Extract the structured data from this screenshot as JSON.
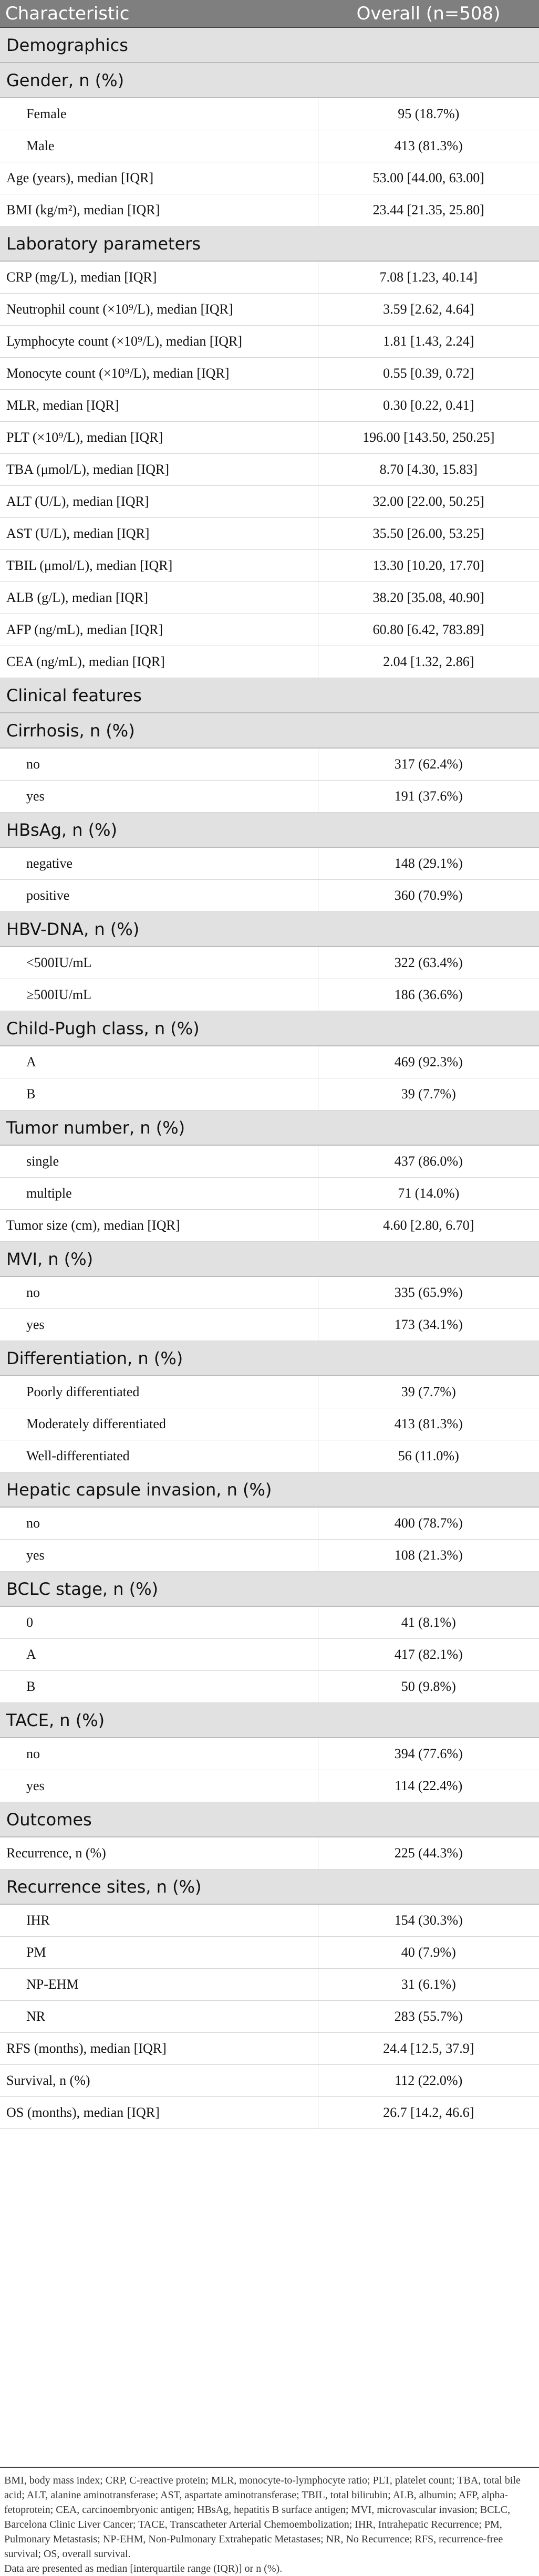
{
  "table": {
    "header": {
      "col1": "Characteristic",
      "col2": "Overall (n=508)"
    },
    "rows": [
      {
        "type": "sec",
        "label": "Demographics"
      },
      {
        "type": "sec",
        "label": "Gender, n (%)"
      },
      {
        "type": "row",
        "label": "Female",
        "value": "95 (18.7%)",
        "indent": true
      },
      {
        "type": "row",
        "label": "Male",
        "value": "413 (81.3%)",
        "indent": true
      },
      {
        "type": "row",
        "label": "Age (years), median [IQR]",
        "value": "53.00 [44.00, 63.00]"
      },
      {
        "type": "row",
        "label": "BMI (kg/m²), median [IQR]",
        "value": "23.44 [21.35, 25.80]"
      },
      {
        "type": "sec",
        "label": "Laboratory parameters"
      },
      {
        "type": "row",
        "label": "CRP (mg/L), median [IQR]",
        "value": "7.08 [1.23, 40.14]"
      },
      {
        "type": "row",
        "label": "Neutrophil count (×10⁹/L), median [IQR]",
        "value": "3.59 [2.62, 4.64]"
      },
      {
        "type": "row",
        "label": "Lymphocyte count (×10⁹/L), median [IQR]",
        "value": "1.81 [1.43, 2.24]"
      },
      {
        "type": "row",
        "label": "Monocyte count (×10⁹/L), median [IQR]",
        "value": "0.55 [0.39, 0.72]"
      },
      {
        "type": "row",
        "label": "MLR, median [IQR]",
        "value": "0.30 [0.22, 0.41]"
      },
      {
        "type": "row",
        "label": "PLT (×10⁹/L), median [IQR]",
        "value": "196.00 [143.50, 250.25]"
      },
      {
        "type": "row",
        "label": "TBA (μmol/L), median [IQR]",
        "value": "8.70 [4.30, 15.83]"
      },
      {
        "type": "row",
        "label": "ALT (U/L), median [IQR]",
        "value": "32.00 [22.00, 50.25]"
      },
      {
        "type": "row",
        "label": "AST (U/L), median [IQR]",
        "value": "35.50 [26.00, 53.25]"
      },
      {
        "type": "row",
        "label": "TBIL (μmol/L), median [IQR]",
        "value": "13.30 [10.20, 17.70]"
      },
      {
        "type": "row",
        "label": "ALB (g/L), median [IQR]",
        "value": "38.20 [35.08, 40.90]"
      },
      {
        "type": "row",
        "label": "AFP (ng/mL), median [IQR]",
        "value": "60.80 [6.42, 783.89]"
      },
      {
        "type": "row",
        "label": "CEA (ng/mL), median [IQR]",
        "value": "2.04 [1.32, 2.86]"
      },
      {
        "type": "sec",
        "label": "Clinical features"
      },
      {
        "type": "sec",
        "label": "Cirrhosis, n (%)"
      },
      {
        "type": "row",
        "label": "no",
        "value": "317 (62.4%)",
        "indent": true
      },
      {
        "type": "row",
        "label": "yes",
        "value": "191 (37.6%)",
        "indent": true
      },
      {
        "type": "sec",
        "label": "HBsAg, n (%)"
      },
      {
        "type": "row",
        "label": "negative",
        "value": "148 (29.1%)",
        "indent": true
      },
      {
        "type": "row",
        "label": "positive",
        "value": "360 (70.9%)",
        "indent": true
      },
      {
        "type": "sec",
        "label": "HBV-DNA, n (%)"
      },
      {
        "type": "row",
        "label": "<500IU/mL",
        "value": "322 (63.4%)",
        "indent": true
      },
      {
        "type": "row",
        "label": "≥500IU/mL",
        "value": "186 (36.6%)",
        "indent": true
      },
      {
        "type": "sec",
        "label": "Child-Pugh class, n (%)"
      },
      {
        "type": "row",
        "label": "A",
        "value": "469 (92.3%)",
        "indent": true
      },
      {
        "type": "row",
        "label": "B",
        "value": "39 (7.7%)",
        "indent": true
      },
      {
        "type": "sec",
        "label": "Tumor number, n (%)"
      },
      {
        "type": "row",
        "label": "single",
        "value": "437 (86.0%)",
        "indent": true
      },
      {
        "type": "row",
        "label": "multiple",
        "value": "71 (14.0%)",
        "indent": true
      },
      {
        "type": "row",
        "label": "Tumor size (cm), median [IQR]",
        "value": "4.60 [2.80, 6.70]"
      },
      {
        "type": "sec",
        "label": "MVI, n (%)"
      },
      {
        "type": "row",
        "label": "no",
        "value": "335 (65.9%)",
        "indent": true
      },
      {
        "type": "row",
        "label": "yes",
        "value": "173 (34.1%)",
        "indent": true
      },
      {
        "type": "sec",
        "label": "Differentiation, n (%)"
      },
      {
        "type": "row",
        "label": "Poorly differentiated",
        "value": "39 (7.7%)",
        "indent": true
      },
      {
        "type": "row",
        "label": "Moderately differentiated",
        "value": "413 (81.3%)",
        "indent": true
      },
      {
        "type": "row",
        "label": "Well-differentiated",
        "value": "56 (11.0%)",
        "indent": true
      },
      {
        "type": "sec",
        "label": "Hepatic capsule invasion, n (%)"
      },
      {
        "type": "row",
        "label": "no",
        "value": "400 (78.7%)",
        "indent": true
      },
      {
        "type": "row",
        "label": "yes",
        "value": "108 (21.3%)",
        "indent": true
      },
      {
        "type": "sec",
        "label": "BCLC stage, n (%)"
      },
      {
        "type": "row",
        "label": "0",
        "value": "41 (8.1%)",
        "indent": true
      },
      {
        "type": "row",
        "label": "A",
        "value": "417 (82.1%)",
        "indent": true
      },
      {
        "type": "row",
        "label": "B",
        "value": "50 (9.8%)",
        "indent": true
      },
      {
        "type": "sec",
        "label": "TACE, n (%)"
      },
      {
        "type": "row",
        "label": "no",
        "value": "394 (77.6%)",
        "indent": true
      },
      {
        "type": "row",
        "label": "yes",
        "value": "114 (22.4%)",
        "indent": true
      },
      {
        "type": "sec",
        "label": "Outcomes"
      },
      {
        "type": "row",
        "label": "Recurrence, n (%)",
        "value": "225 (44.3%)"
      },
      {
        "type": "sec",
        "label": "Recurrence sites, n (%)"
      },
      {
        "type": "row",
        "label": "IHR",
        "value": "154 (30.3%)",
        "indent": true
      },
      {
        "type": "row",
        "label": "PM",
        "value": "40 (7.9%)",
        "indent": true
      },
      {
        "type": "row",
        "label": "NP-EHM",
        "value": "31 (6.1%)",
        "indent": true
      },
      {
        "type": "row",
        "label": "NR",
        "value": "283 (55.7%)",
        "indent": true
      },
      {
        "type": "row",
        "label": "RFS (months), median [IQR]",
        "value": "24.4 [12.5, 37.9]"
      },
      {
        "type": "row",
        "label": "Survival, n (%)",
        "value": "112 (22.0%)"
      },
      {
        "type": "row",
        "label": "OS (months), median [IQR]",
        "value": "26.7 [14.2, 46.6]"
      }
    ]
  },
  "footnote": {
    "abbreviations": "BMI, body mass index; CRP, C-reactive protein; MLR, monocyte-to-lymphocyte ratio; PLT, platelet count; TBA, total bile acid; ALT, alanine aminotransferase; AST, aspartate aminotransferase; TBIL, total bilirubin; ALB, albumin; AFP, alpha-fetoprotein; CEA, carcinoembryonic antigen; HBsAg, hepatitis B surface antigen; MVI, microvascular invasion; BCLC, Barcelona Clinic Liver Cancer; TACE, Transcatheter Arterial Chemoembolization; IHR, Intrahepatic Recurrence; PM, Pulmonary Metastasis; NP-EHM, Non-Pulmonary Extrahepatic Metastases; NR, No Recurrence; RFS, recurrence-free survival; OS, overall survival.",
    "note": "Data are presented as median [interquartile range (IQR)] or n (%)."
  }
}
